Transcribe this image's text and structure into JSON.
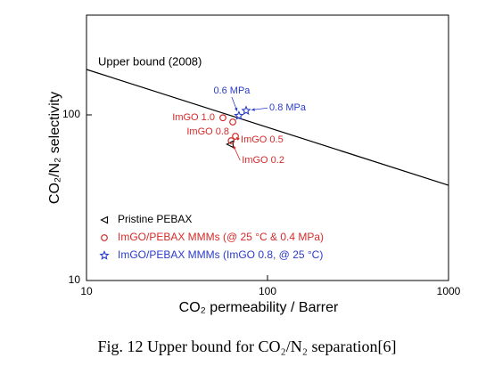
{
  "chart_data": {
    "type": "scatter",
    "x_label": "CO₂ permeability / Barrer",
    "y_label": "CO₂/N₂ selectivity",
    "caption": "Fig. 12 Upper bound for CO₂/N₂ separation[6]",
    "x_log": true,
    "y_log": true,
    "xlim": [
      10,
      1000
    ],
    "ylim": [
      10,
      400
    ],
    "xticks": [
      10,
      100,
      1000
    ],
    "yticks": [
      10,
      100
    ],
    "upper_bound": {
      "label": "Upper bound (2008)",
      "color": "#000000",
      "x": [
        10,
        1000
      ],
      "values": [
        188,
        37.6
      ]
    },
    "series": [
      {
        "name": "Pristine PEBAX",
        "color": "#000000",
        "marker": "triangle",
        "x": [
          62
        ],
        "values": [
          66.5
        ]
      },
      {
        "name": "ImGO/PEBAX MMMs (@ 25 °C & 0.4 MPa)",
        "color": "#d42a2a",
        "marker": "circle",
        "x": [
          56.7,
          64.3,
          66.5,
          63
        ],
        "values": [
          96,
          90.6,
          74.3,
          69.8
        ],
        "point_labels": [
          "ImGO 1.0",
          "ImGO 0.8",
          "ImGO 0.5",
          "ImGO 0.2"
        ]
      },
      {
        "name": "ImGO/PEBAX MMMs (ImGO 0.8, @ 25 °C)",
        "color": "#2a3cc8",
        "marker": "star",
        "x": [
          69.5,
          76.2
        ],
        "values": [
          98.8,
          106
        ],
        "point_labels": [
          "0.6 MPa",
          "0.8 MPa"
        ]
      }
    ]
  }
}
